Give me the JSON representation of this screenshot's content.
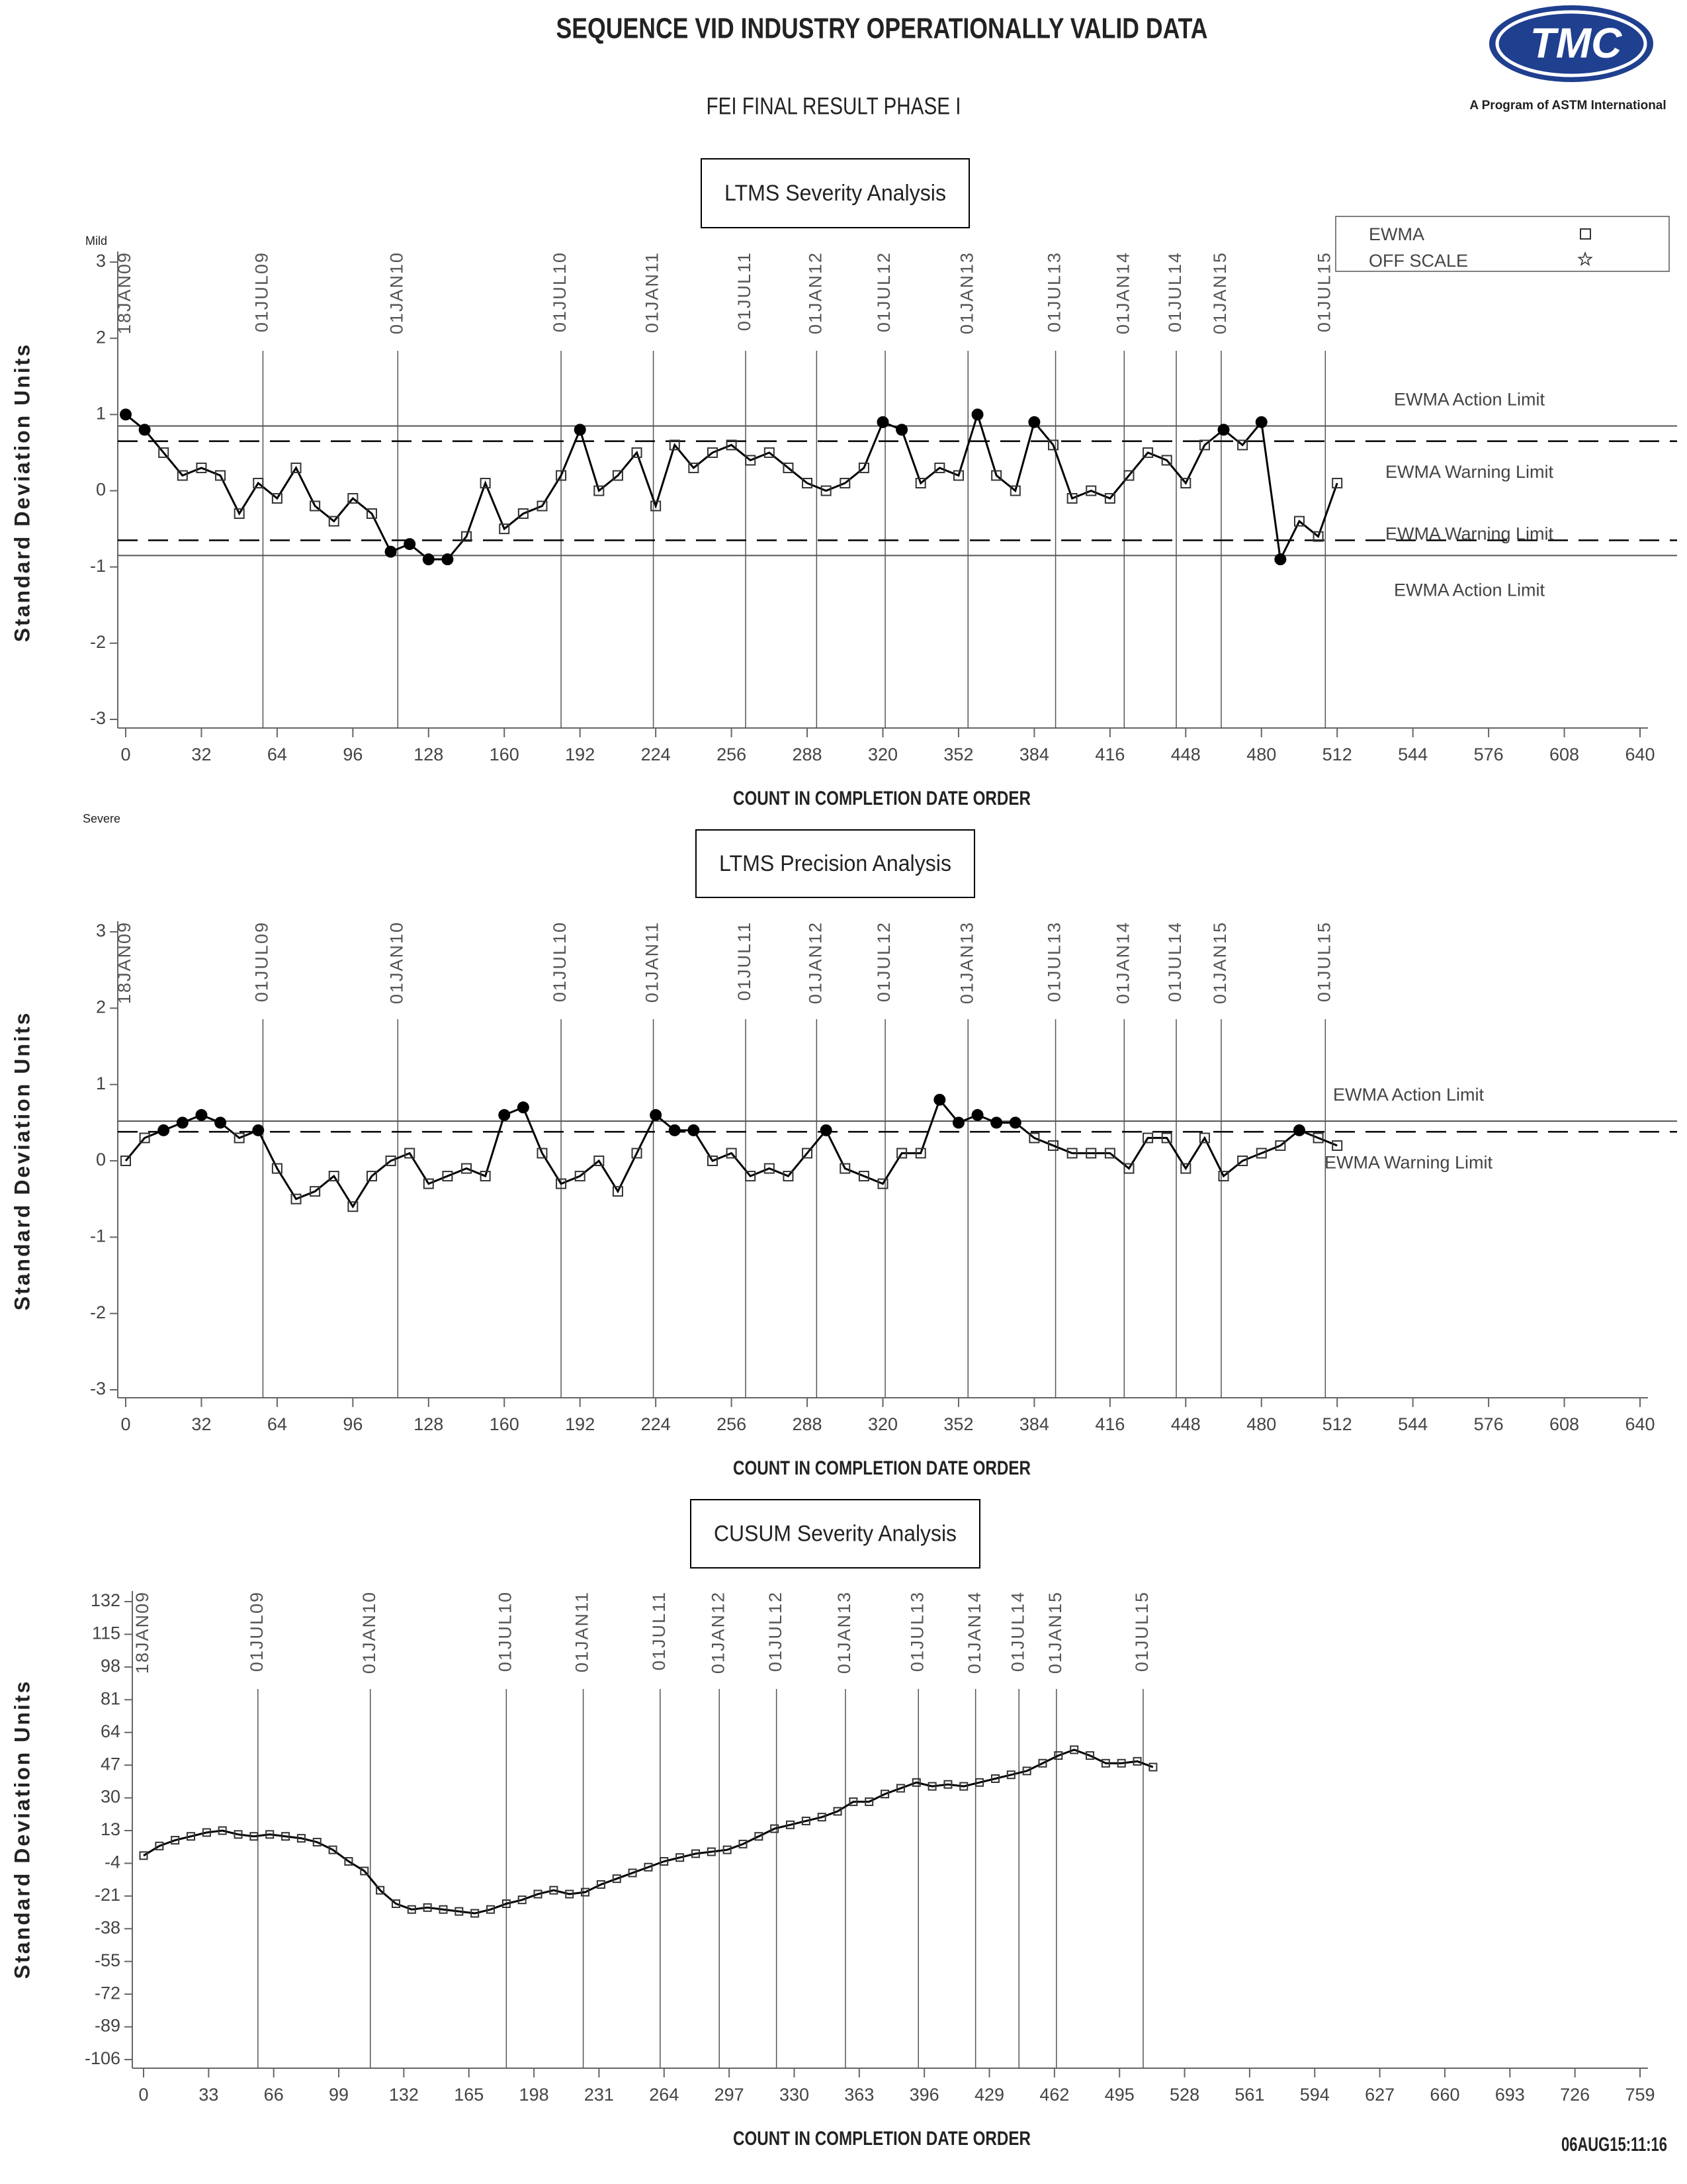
{
  "header": {
    "title": "SEQUENCE VID INDUSTRY OPERATIONALLY VALID DATA",
    "subtitle": "FEI FINAL RESULT PHASE I",
    "logo_text": "TMC",
    "logo_caption": "A Program of ASTM International",
    "timestamp": "06AUG15:11:16"
  },
  "chart_data": [
    {
      "type": "line",
      "title": "LTMS Severity Analysis",
      "xlabel": "COUNT IN COMPLETION DATE ORDER",
      "ylabel": "Standard Deviation Units",
      "y_top_label": "Mild",
      "y_bottom_label": "Severe",
      "legend_entries": [
        "EWMA",
        "OFF SCALE"
      ],
      "xlim": [
        0,
        640
      ],
      "xticks": [
        0,
        32,
        64,
        96,
        128,
        160,
        192,
        224,
        256,
        288,
        320,
        352,
        384,
        416,
        448,
        480,
        512,
        544,
        576,
        608,
        640
      ],
      "ylim": [
        -3,
        3
      ],
      "yticks": [
        -3,
        -2,
        -1,
        0,
        1,
        2,
        3
      ],
      "date_markers": [
        {
          "x": 0,
          "label": "18JAN09"
        },
        {
          "x": 58,
          "label": "01JUL09"
        },
        {
          "x": 115,
          "label": "01JAN10"
        },
        {
          "x": 184,
          "label": "01JUL10"
        },
        {
          "x": 223,
          "label": "01JAN11"
        },
        {
          "x": 262,
          "label": "01JUL11"
        },
        {
          "x": 292,
          "label": "01JAN12"
        },
        {
          "x": 321,
          "label": "01JUL12"
        },
        {
          "x": 356,
          "label": "01JAN13"
        },
        {
          "x": 393,
          "label": "01JUL13"
        },
        {
          "x": 422,
          "label": "01JAN14"
        },
        {
          "x": 444,
          "label": "01JUL14"
        },
        {
          "x": 463,
          "label": "01JAN15"
        },
        {
          "x": 507,
          "label": "01JUL15"
        }
      ],
      "reference_lines": [
        {
          "value": 0.85,
          "label": "EWMA Action Limit",
          "style": "solid"
        },
        {
          "value": 0.65,
          "label": "EWMA Warning Limit",
          "style": "dashed"
        },
        {
          "value": -0.65,
          "label": "EWMA Warning Limit",
          "style": "dashed"
        },
        {
          "value": -0.85,
          "label": "EWMA Action Limit",
          "style": "solid"
        }
      ],
      "x": [
        0,
        8,
        16,
        24,
        32,
        40,
        48,
        56,
        64,
        72,
        80,
        88,
        96,
        104,
        112,
        120,
        128,
        136,
        144,
        152,
        160,
        168,
        176,
        184,
        192,
        200,
        208,
        216,
        224,
        232,
        240,
        248,
        256,
        264,
        272,
        280,
        288,
        296,
        304,
        312,
        320,
        328,
        336,
        344,
        352,
        360,
        368,
        376,
        384,
        392,
        400,
        408,
        416,
        424,
        432,
        440,
        448,
        456,
        464,
        472,
        480,
        488,
        496,
        504,
        512
      ],
      "series": [
        {
          "name": "EWMA",
          "color": "#000000",
          "values": [
            1.0,
            0.8,
            0.5,
            0.2,
            0.3,
            0.2,
            -0.3,
            0.1,
            -0.1,
            0.3,
            -0.2,
            -0.4,
            -0.1,
            -0.3,
            -0.8,
            -0.7,
            -0.9,
            -0.9,
            -0.6,
            0.1,
            -0.5,
            -0.3,
            -0.2,
            0.2,
            0.8,
            0.0,
            0.2,
            0.5,
            -0.2,
            0.6,
            0.3,
            0.5,
            0.6,
            0.4,
            0.5,
            0.3,
            0.1,
            0.0,
            0.1,
            0.3,
            0.9,
            0.8,
            0.1,
            0.3,
            0.2,
            1.0,
            0.2,
            0.0,
            0.9,
            0.6,
            -0.1,
            0.0,
            -0.1,
            0.2,
            0.5,
            0.4,
            0.1,
            0.6,
            0.8,
            0.6,
            0.9,
            -0.9,
            -0.4,
            -0.6,
            0.1
          ]
        }
      ]
    },
    {
      "type": "line",
      "title": "LTMS Precision Analysis",
      "xlabel": "COUNT IN COMPLETION DATE ORDER",
      "ylabel": "Standard Deviation Units",
      "xlim": [
        0,
        640
      ],
      "xticks": [
        0,
        32,
        64,
        96,
        128,
        160,
        192,
        224,
        256,
        288,
        320,
        352,
        384,
        416,
        448,
        480,
        512,
        544,
        576,
        608,
        640
      ],
      "ylim": [
        -3,
        3
      ],
      "yticks": [
        -3,
        -2,
        -1,
        0,
        1,
        2,
        3
      ],
      "date_markers": [
        {
          "x": 0,
          "label": "18JAN09"
        },
        {
          "x": 58,
          "label": "01JUL09"
        },
        {
          "x": 115,
          "label": "01JAN10"
        },
        {
          "x": 184,
          "label": "01JUL10"
        },
        {
          "x": 223,
          "label": "01JAN11"
        },
        {
          "x": 262,
          "label": "01JUL11"
        },
        {
          "x": 292,
          "label": "01JAN12"
        },
        {
          "x": 321,
          "label": "01JUL12"
        },
        {
          "x": 356,
          "label": "01JAN13"
        },
        {
          "x": 393,
          "label": "01JUL13"
        },
        {
          "x": 422,
          "label": "01JAN14"
        },
        {
          "x": 444,
          "label": "01JUL14"
        },
        {
          "x": 463,
          "label": "01JAN15"
        },
        {
          "x": 507,
          "label": "01JUL15"
        }
      ],
      "reference_lines": [
        {
          "value": 0.52,
          "label": "EWMA Action Limit",
          "style": "solid"
        },
        {
          "value": 0.38,
          "label": "EWMA Warning Limit",
          "style": "dashed"
        }
      ],
      "x": [
        0,
        8,
        16,
        24,
        32,
        40,
        48,
        56,
        64,
        72,
        80,
        88,
        96,
        104,
        112,
        120,
        128,
        136,
        144,
        152,
        160,
        168,
        176,
        184,
        192,
        200,
        208,
        216,
        224,
        232,
        240,
        248,
        256,
        264,
        272,
        280,
        288,
        296,
        304,
        312,
        320,
        328,
        336,
        344,
        352,
        360,
        368,
        376,
        384,
        392,
        400,
        408,
        416,
        424,
        432,
        440,
        448,
        456,
        464,
        472,
        480,
        488,
        496,
        504,
        512
      ],
      "series": [
        {
          "name": "EWMA",
          "color": "#000000",
          "values": [
            0.0,
            0.3,
            0.4,
            0.5,
            0.6,
            0.5,
            0.3,
            0.4,
            -0.1,
            -0.5,
            -0.4,
            -0.2,
            -0.6,
            -0.2,
            0.0,
            0.1,
            -0.3,
            -0.2,
            -0.1,
            -0.2,
            0.6,
            0.7,
            0.1,
            -0.3,
            -0.2,
            0.0,
            -0.4,
            0.1,
            0.6,
            0.4,
            0.4,
            0.0,
            0.1,
            -0.2,
            -0.1,
            -0.2,
            0.1,
            0.4,
            -0.1,
            -0.2,
            -0.3,
            0.1,
            0.1,
            0.8,
            0.5,
            0.6,
            0.5,
            0.5,
            0.3,
            0.2,
            0.1,
            0.1,
            0.1,
            -0.1,
            0.3,
            0.3,
            -0.1,
            0.3,
            -0.2,
            0.0,
            0.1,
            0.2,
            0.4,
            0.3,
            0.2
          ]
        }
      ]
    },
    {
      "type": "line",
      "title": "CUSUM Severity Analysis",
      "xlabel": "COUNT IN COMPLETION DATE ORDER",
      "ylabel": "Standard Deviation Units",
      "xlim": [
        0,
        759
      ],
      "xticks": [
        0,
        33,
        66,
        99,
        132,
        165,
        198,
        231,
        264,
        297,
        330,
        363,
        396,
        429,
        462,
        495,
        528,
        561,
        594,
        627,
        660,
        693,
        726,
        759
      ],
      "ylim": [
        -106,
        132
      ],
      "yticks": [
        -106,
        -89,
        -72,
        -55,
        -38,
        -21,
        -4,
        13,
        30,
        47,
        64,
        81,
        98,
        115,
        132
      ],
      "date_markers": [
        {
          "x": 0,
          "label": "18JAN09"
        },
        {
          "x": 58,
          "label": "01JUL09"
        },
        {
          "x": 115,
          "label": "01JAN10"
        },
        {
          "x": 184,
          "label": "01JUL10"
        },
        {
          "x": 223,
          "label": "01JAN11"
        },
        {
          "x": 262,
          "label": "01JUL11"
        },
        {
          "x": 292,
          "label": "01JAN12"
        },
        {
          "x": 321,
          "label": "01JUL12"
        },
        {
          "x": 356,
          "label": "01JAN13"
        },
        {
          "x": 393,
          "label": "01JUL13"
        },
        {
          "x": 422,
          "label": "01JAN14"
        },
        {
          "x": 444,
          "label": "01JUL14"
        },
        {
          "x": 463,
          "label": "01JAN15"
        },
        {
          "x": 507,
          "label": "01JUL15"
        }
      ],
      "x": [
        0,
        8,
        16,
        24,
        32,
        40,
        48,
        56,
        64,
        72,
        80,
        88,
        96,
        104,
        112,
        120,
        128,
        136,
        144,
        152,
        160,
        168,
        176,
        184,
        192,
        200,
        208,
        216,
        224,
        232,
        240,
        248,
        256,
        264,
        272,
        280,
        288,
        296,
        304,
        312,
        320,
        328,
        336,
        344,
        352,
        360,
        368,
        376,
        384,
        392,
        400,
        408,
        416,
        424,
        432,
        440,
        448,
        456,
        464,
        472,
        480,
        488,
        496,
        504,
        512
      ],
      "series": [
        {
          "name": "CUSUM",
          "color": "#000000",
          "values": [
            0,
            5,
            8,
            10,
            12,
            13,
            11,
            10,
            11,
            10,
            9,
            7,
            3,
            -3,
            -8,
            -18,
            -25,
            -28,
            -27,
            -28,
            -29,
            -30,
            -28,
            -25,
            -23,
            -20,
            -18,
            -20,
            -19,
            -15,
            -12,
            -9,
            -6,
            -3,
            -1,
            1,
            2,
            3,
            6,
            10,
            14,
            16,
            18,
            20,
            23,
            28,
            28,
            32,
            35,
            38,
            36,
            37,
            36,
            38,
            40,
            42,
            44,
            48,
            52,
            55,
            52,
            48,
            48,
            49,
            46
          ]
        }
      ]
    }
  ]
}
